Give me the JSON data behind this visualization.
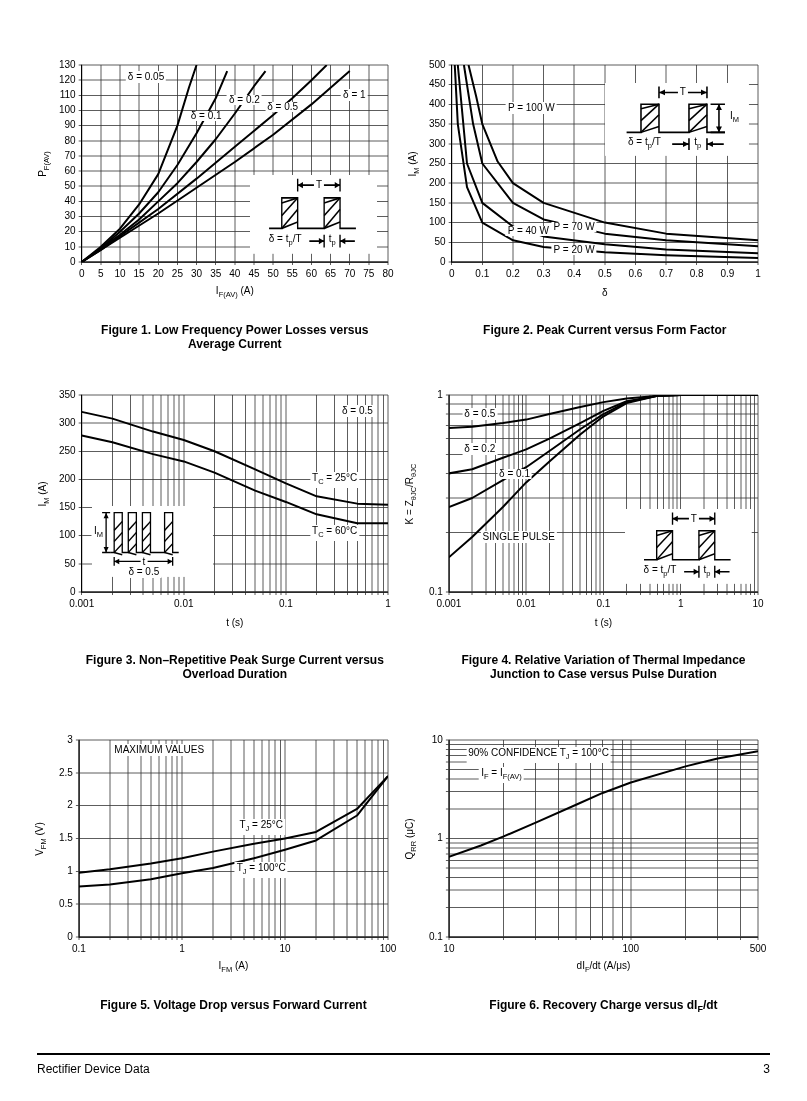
{
  "chart_data": [
    {
      "type": "line",
      "title": "Figure 1. Low Frequency Power Losses versus Average Current",
      "xlabel": "I$_{F(AV)}$ (A)",
      "ylabel": "P$_{F(AV)}$",
      "grid": true,
      "xlim": [
        0,
        80
      ],
      "ylim": [
        0,
        130
      ],
      "xticks": [
        0,
        5,
        10,
        15,
        20,
        25,
        30,
        35,
        40,
        45,
        50,
        55,
        60,
        65,
        70,
        75,
        80
      ],
      "yticks": [
        0,
        10,
        20,
        30,
        40,
        50,
        60,
        70,
        80,
        90,
        100,
        110,
        120,
        130
      ],
      "series": [
        {
          "name": "δ = 0.05",
          "color": "#000000",
          "x": [
            0,
            5,
            10,
            15,
            20,
            25,
            28,
            30
          ],
          "values": [
            0,
            10,
            22,
            38,
            58,
            90,
            115,
            130
          ]
        },
        {
          "name": "δ = 0.1",
          "color": "#000000",
          "x": [
            0,
            5,
            10,
            15,
            20,
            25,
            30,
            35,
            38
          ],
          "values": [
            0,
            9,
            20,
            32,
            46,
            64,
            85,
            108,
            126
          ]
        },
        {
          "name": "δ = 0.2",
          "color": "#000000",
          "x": [
            0,
            5,
            10,
            15,
            20,
            25,
            30,
            35,
            40,
            45,
            48
          ],
          "values": [
            0,
            9,
            18,
            28,
            40,
            52,
            66,
            81,
            98,
            116,
            126
          ]
        },
        {
          "name": "δ = 0.5",
          "color": "#000000",
          "x": [
            0,
            5,
            10,
            15,
            20,
            30,
            40,
            50,
            55,
            60,
            64
          ],
          "values": [
            0,
            8,
            17,
            26,
            35,
            55,
            76,
            97,
            108,
            120,
            130
          ]
        },
        {
          "name": "δ = 1",
          "color": "#000000",
          "x": [
            0,
            5,
            10,
            20,
            30,
            40,
            50,
            60,
            70
          ],
          "values": [
            0,
            8,
            16,
            32,
            49,
            66,
            84,
            104,
            126
          ]
        }
      ],
      "annotations": [
        "T",
        "δ = t$_{p}$/T",
        "t$_{p}$"
      ]
    },
    {
      "type": "line",
      "title": "Figure 2. Peak Current versus Form Factor",
      "xlabel": "δ",
      "ylabel": "I$_{M}$ (A)",
      "grid": true,
      "xlim": [
        0,
        1
      ],
      "ylim": [
        0,
        500
      ],
      "xticks": [
        0,
        0.1,
        0.2,
        0.3,
        0.4,
        0.5,
        0.6,
        0.7,
        0.8,
        0.9,
        1
      ],
      "yticks": [
        0,
        50,
        100,
        150,
        200,
        250,
        300,
        350,
        400,
        450,
        500
      ],
      "series": [
        {
          "name": "P = 100 W",
          "color": "#000000",
          "x": [
            0.055,
            0.08,
            0.1,
            0.15,
            0.2,
            0.3,
            0.5,
            0.7,
            1
          ],
          "values": [
            500,
            420,
            350,
            255,
            200,
            150,
            100,
            72,
            55
          ]
        },
        {
          "name": "P = 70 W",
          "color": "#000000",
          "x": [
            0.04,
            0.07,
            0.1,
            0.2,
            0.3,
            0.5,
            0.7,
            1
          ],
          "values": [
            500,
            350,
            250,
            150,
            108,
            72,
            55,
            40
          ]
        },
        {
          "name": "P = 40 W",
          "color": "#000000",
          "x": [
            0.02,
            0.05,
            0.1,
            0.2,
            0.3,
            0.5,
            0.7,
            1
          ],
          "values": [
            500,
            250,
            150,
            90,
            65,
            45,
            32,
            22
          ]
        },
        {
          "name": "P = 20 W",
          "color": "#000000",
          "x": [
            0.01,
            0.02,
            0.05,
            0.1,
            0.2,
            0.3,
            0.5,
            0.7,
            1
          ],
          "values": [
            500,
            350,
            190,
            100,
            55,
            38,
            25,
            17,
            10
          ]
        }
      ],
      "annotations": [
        "T",
        "δ = t$_{p}$/T",
        "t$_{p}$",
        "I$_{M}$"
      ]
    },
    {
      "type": "line",
      "title": "Figure 3. Non–Repetitive Peak Surge Current versus Overload Duration",
      "xlabel": "t (s)",
      "ylabel": "I$_{M}$ (A)",
      "grid": true,
      "log": "x",
      "xlim": [
        0.001,
        1
      ],
      "ylim": [
        0,
        350
      ],
      "xticks": [
        0.001,
        {
          "value": 0.002,
          "label": null
        },
        {
          "value": 0.003,
          "label": null
        },
        {
          "value": 0.004,
          "label": null
        },
        {
          "value": 0.005,
          "label": null
        },
        {
          "value": 0.006,
          "label": null
        },
        {
          "value": 0.007,
          "label": null
        },
        {
          "value": 0.008,
          "label": null
        },
        {
          "value": 0.009,
          "label": null
        },
        0.01,
        {
          "value": 0.02,
          "label": null
        },
        {
          "value": 0.03,
          "label": null
        },
        {
          "value": 0.04,
          "label": null
        },
        {
          "value": 0.05,
          "label": null
        },
        {
          "value": 0.06,
          "label": null
        },
        {
          "value": 0.07,
          "label": null
        },
        {
          "value": 0.08,
          "label": null
        },
        {
          "value": 0.09,
          "label": null
        },
        0.1,
        {
          "value": 0.2,
          "label": null
        },
        {
          "value": 0.3,
          "label": null
        },
        {
          "value": 0.4,
          "label": null
        },
        {
          "value": 0.5,
          "label": null
        },
        {
          "value": 0.6,
          "label": null
        },
        {
          "value": 0.7,
          "label": null
        },
        {
          "value": 0.8,
          "label": null
        },
        {
          "value": 0.9,
          "label": null
        },
        1
      ],
      "yticks": [
        0,
        50,
        100,
        150,
        200,
        250,
        300,
        350
      ],
      "series": [
        {
          "name": "T$_{C}$ = 25°C",
          "color": "#000000",
          "x": [
            0.001,
            0.002,
            0.005,
            0.01,
            0.02,
            0.05,
            0.1,
            0.2,
            0.5,
            1
          ],
          "values": [
            320,
            308,
            285,
            270,
            250,
            218,
            193,
            170,
            157,
            155
          ]
        },
        {
          "name": "T$_{C}$ = 60°C",
          "color": "#000000",
          "x": [
            0.001,
            0.002,
            0.005,
            0.01,
            0.02,
            0.05,
            0.1,
            0.2,
            0.5,
            1
          ],
          "values": [
            278,
            266,
            245,
            232,
            212,
            180,
            160,
            138,
            122,
            122
          ]
        }
      ],
      "annotations": [
        "δ = 0.5",
        "I$_{M}$",
        "t",
        "δ = 0.5"
      ]
    },
    {
      "type": "line",
      "title": "Figure 4. Relative Variation of Thermal Impedance Junction to Case versus Pulse Duration",
      "xlabel": "t (s)",
      "ylabel": "K = Z$_{θJC}$/R$_{θJC}$",
      "grid": true,
      "log": "xy",
      "xlim": [
        0.001,
        10
      ],
      "ylim": [
        0.1,
        1
      ],
      "xticks": [
        0.001,
        {
          "value": 0.002,
          "label": null
        },
        {
          "value": 0.003,
          "label": null
        },
        {
          "value": 0.004,
          "label": null
        },
        {
          "value": 0.005,
          "label": null
        },
        {
          "value": 0.006,
          "label": null
        },
        {
          "value": 0.007,
          "label": null
        },
        {
          "value": 0.008,
          "label": null
        },
        {
          "value": 0.009,
          "label": null
        },
        0.01,
        {
          "value": 0.02,
          "label": null
        },
        {
          "value": 0.03,
          "label": null
        },
        {
          "value": 0.04,
          "label": null
        },
        {
          "value": 0.05,
          "label": null
        },
        {
          "value": 0.06,
          "label": null
        },
        {
          "value": 0.07,
          "label": null
        },
        {
          "value": 0.08,
          "label": null
        },
        {
          "value": 0.09,
          "label": null
        },
        0.1,
        {
          "value": 0.2,
          "label": null
        },
        {
          "value": 0.3,
          "label": null
        },
        {
          "value": 0.4,
          "label": null
        },
        {
          "value": 0.5,
          "label": null
        },
        {
          "value": 0.6,
          "label": null
        },
        {
          "value": 0.7,
          "label": null
        },
        {
          "value": 0.8,
          "label": null
        },
        {
          "value": 0.9,
          "label": null
        },
        1,
        {
          "value": 2,
          "label": null
        },
        {
          "value": 3,
          "label": null
        },
        {
          "value": 4,
          "label": null
        },
        {
          "value": 5,
          "label": null
        },
        {
          "value": 6,
          "label": null
        },
        {
          "value": 7,
          "label": null
        },
        {
          "value": 8,
          "label": null
        },
        {
          "value": 9,
          "label": null
        },
        10
      ],
      "yticks": [
        0.1,
        {
          "value": 0.2,
          "label": null
        },
        {
          "value": 0.3,
          "label": null
        },
        {
          "value": 0.4,
          "label": null
        },
        {
          "value": 0.5,
          "label": null
        },
        {
          "value": 0.6,
          "label": null
        },
        {
          "value": 0.7,
          "label": null
        },
        {
          "value": 0.8,
          "label": null
        },
        {
          "value": 0.9,
          "label": null
        },
        1
      ],
      "series": [
        {
          "name": "δ = 0.5",
          "color": "#000000",
          "x": [
            0.001,
            0.002,
            0.005,
            0.01,
            0.02,
            0.05,
            0.1,
            0.2,
            0.5,
            1,
            10
          ],
          "values": [
            0.68,
            0.69,
            0.72,
            0.75,
            0.8,
            0.87,
            0.92,
            0.96,
            0.99,
            1,
            1
          ]
        },
        {
          "name": "δ = 0.2",
          "color": "#000000",
          "x": [
            0.001,
            0.002,
            0.005,
            0.01,
            0.02,
            0.05,
            0.1,
            0.2,
            0.5,
            1,
            10
          ],
          "values": [
            0.4,
            0.42,
            0.48,
            0.53,
            0.6,
            0.72,
            0.83,
            0.93,
            0.99,
            1,
            1
          ]
        },
        {
          "name": "δ = 0.1",
          "color": "#000000",
          "x": [
            0.001,
            0.002,
            0.005,
            0.01,
            0.02,
            0.05,
            0.1,
            0.2,
            0.5,
            1,
            10
          ],
          "values": [
            0.27,
            0.3,
            0.37,
            0.43,
            0.52,
            0.67,
            0.8,
            0.92,
            0.99,
            1,
            1
          ]
        },
        {
          "name": "SINGLE PULSE",
          "color": "#000000",
          "x": [
            0.001,
            0.002,
            0.005,
            0.01,
            0.02,
            0.05,
            0.1,
            0.2,
            0.5,
            1,
            10
          ],
          "values": [
            0.15,
            0.19,
            0.27,
            0.36,
            0.46,
            0.63,
            0.78,
            0.91,
            0.99,
            1,
            1
          ]
        }
      ],
      "annotations": [
        "T",
        "δ = t$_{p}$/T",
        "t$_{p}$"
      ]
    },
    {
      "type": "line",
      "title": "Figure 5. Voltage Drop versus Forward Current",
      "xlabel": "I$_{FM}$ (A)",
      "ylabel": "V$_{FM}$ (V)",
      "grid": true,
      "log": "x",
      "xlim": [
        0.1,
        100
      ],
      "ylim": [
        0,
        3
      ],
      "xticks": [
        0.1,
        {
          "value": 0.2,
          "label": null
        },
        {
          "value": 0.3,
          "label": null
        },
        {
          "value": 0.4,
          "label": null
        },
        {
          "value": 0.5,
          "label": null
        },
        {
          "value": 0.6,
          "label": null
        },
        {
          "value": 0.7,
          "label": null
        },
        {
          "value": 0.8,
          "label": null
        },
        {
          "value": 0.9,
          "label": null
        },
        1,
        {
          "value": 2,
          "label": null
        },
        {
          "value": 3,
          "label": null
        },
        {
          "value": 4,
          "label": null
        },
        {
          "value": 5,
          "label": null
        },
        {
          "value": 6,
          "label": null
        },
        {
          "value": 7,
          "label": null
        },
        {
          "value": 8,
          "label": null
        },
        {
          "value": 9,
          "label": null
        },
        10,
        {
          "value": 20,
          "label": null
        },
        {
          "value": 30,
          "label": null
        },
        {
          "value": 40,
          "label": null
        },
        {
          "value": 50,
          "label": null
        },
        {
          "value": 60,
          "label": null
        },
        {
          "value": 70,
          "label": null
        },
        {
          "value": 80,
          "label": null
        },
        {
          "value": 90,
          "label": null
        },
        100
      ],
      "yticks": [
        0,
        0.5,
        1,
        1.5,
        2,
        2.5,
        3
      ],
      "series": [
        {
          "name": "T$_{J}$ = 25°C",
          "color": "#000000",
          "x": [
            0.1,
            0.2,
            0.5,
            1,
            2,
            5,
            10,
            20,
            50,
            100
          ],
          "values": [
            0.98,
            1.03,
            1.12,
            1.2,
            1.3,
            1.42,
            1.5,
            1.6,
            1.95,
            2.45
          ]
        },
        {
          "name": "T$_{J}$ = 100°C",
          "color": "#000000",
          "x": [
            0.1,
            0.2,
            0.5,
            1,
            2,
            5,
            10,
            20,
            50,
            100
          ],
          "values": [
            0.77,
            0.8,
            0.88,
            0.97,
            1.05,
            1.2,
            1.33,
            1.47,
            1.85,
            2.45
          ]
        }
      ],
      "annotations": [
        "MAXIMUM VALUES"
      ]
    },
    {
      "type": "line",
      "title": "Figure 6. Recovery Charge versus dI$_{F}$/dt",
      "xlabel": "dI$_{F}$/dt (A/μs)",
      "ylabel": "Q$_{RR}$ (μC)",
      "grid": true,
      "log": "xy",
      "xlim": [
        10,
        500
      ],
      "ylim": [
        0.1,
        10
      ],
      "xticks": [
        10,
        {
          "value": 20,
          "label": null
        },
        {
          "value": 30,
          "label": null
        },
        {
          "value": 40,
          "label": null
        },
        {
          "value": 50,
          "label": null
        },
        {
          "value": 60,
          "label": null
        },
        {
          "value": 70,
          "label": null
        },
        {
          "value": 80,
          "label": null
        },
        {
          "value": 90,
          "label": null
        },
        100,
        {
          "value": 200,
          "label": null
        },
        {
          "value": 300,
          "label": null
        },
        {
          "value": 400,
          "label": null
        },
        500
      ],
      "yticks": [
        0.1,
        {
          "value": 0.2,
          "label": null
        },
        {
          "value": 0.3,
          "label": null
        },
        {
          "value": 0.4,
          "label": null
        },
        {
          "value": 0.5,
          "label": null
        },
        {
          "value": 0.6,
          "label": null
        },
        {
          "value": 0.7,
          "label": null
        },
        {
          "value": 0.8,
          "label": null
        },
        {
          "value": 0.9,
          "label": null
        },
        1,
        {
          "value": 2,
          "label": null
        },
        {
          "value": 3,
          "label": null
        },
        {
          "value": 4,
          "label": null
        },
        {
          "value": 5,
          "label": null
        },
        {
          "value": 6,
          "label": null
        },
        {
          "value": 7,
          "label": null
        },
        {
          "value": 8,
          "label": null
        },
        {
          "value": 9,
          "label": null
        },
        10
      ],
      "series": [
        {
          "color": "#000000",
          "x": [
            10,
            15,
            20,
            30,
            50,
            70,
            100,
            200,
            300,
            500
          ],
          "values": [
            0.65,
            0.85,
            1.05,
            1.45,
            2.2,
            2.9,
            3.7,
            5.4,
            6.5,
            7.7
          ]
        }
      ],
      "annotations": [
        "90% CONFIDENCE T$_{J}$ = 100°C",
        "I$_{F}$ = I$_{F(AV)}$",
        "Rectifier Device Data",
        "3"
      ]
    }
  ]
}
